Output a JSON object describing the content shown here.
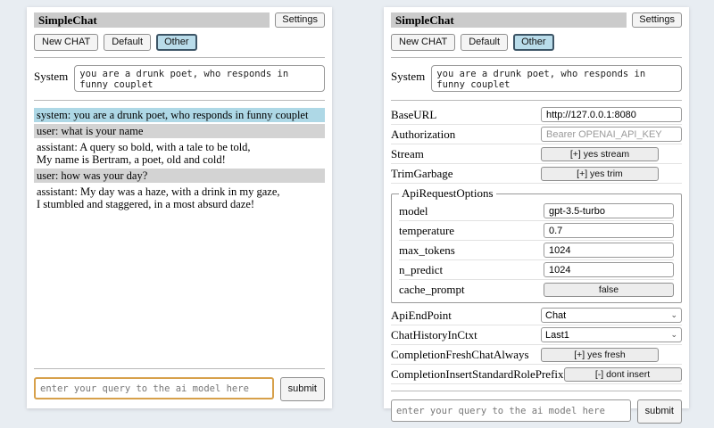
{
  "header": {
    "title": "SimpleChat",
    "settings_button": "Settings",
    "tabs": {
      "new_chat": "New CHAT",
      "default": "Default",
      "other": "Other"
    }
  },
  "system_prompt": {
    "label": "System",
    "value": "you are a drunk poet, who responds in funny couplet"
  },
  "chat": {
    "messages": [
      {
        "role": "system",
        "text": "system: you are a drunk poet, who responds in funny couplet"
      },
      {
        "role": "user",
        "text": "user: what is your name"
      },
      {
        "role": "assistant",
        "text": "assistant: A query so bold, with a tale to be told,\nMy name is Bertram, a poet, old and cold!"
      },
      {
        "role": "user",
        "text": "user: how was your day?"
      },
      {
        "role": "assistant",
        "text": "assistant: My day was a haze, with a drink in my gaze,\nI stumbled and staggered, in a most absurd daze!"
      }
    ]
  },
  "settings": {
    "base_url": {
      "label": "BaseURL",
      "value": "http://127.0.0.1:8080"
    },
    "authorization": {
      "label": "Authorization",
      "placeholder": "Bearer OPENAI_API_KEY"
    },
    "stream": {
      "label": "Stream",
      "button": "[+] yes stream"
    },
    "trim_garbage": {
      "label": "TrimGarbage",
      "button": "[+] yes trim"
    },
    "api_request_options": {
      "legend": "ApiRequestOptions",
      "model": {
        "label": "model",
        "value": "gpt-3.5-turbo"
      },
      "temperature": {
        "label": "temperature",
        "value": "0.7"
      },
      "max_tokens": {
        "label": "max_tokens",
        "value": "1024"
      },
      "n_predict": {
        "label": "n_predict",
        "value": "1024"
      },
      "cache_prompt": {
        "label": "cache_prompt",
        "button": "false"
      }
    },
    "api_endpoint": {
      "label": "ApiEndPoint",
      "selected": "Chat"
    },
    "chat_history_in_ctxt": {
      "label": "ChatHistoryInCtxt",
      "selected": "Last1"
    },
    "completion_fresh_chat_always": {
      "label": "CompletionFreshChatAlways",
      "button": "[+] yes fresh"
    },
    "completion_insert_standard_role_prefix": {
      "label": "CompletionInsertStandardRolePrefix",
      "button": "[-] dont insert"
    }
  },
  "query": {
    "placeholder": "enter your query to the ai model here",
    "submit": "submit"
  },
  "icons": {
    "chevron_down": "⌄"
  },
  "colors": {
    "page_bg": "#e8edf2",
    "titlebar_bg": "#cbcbcb",
    "system_msg_bg": "#aed8e6",
    "user_msg_bg": "#d3d3d3",
    "active_tab_bg": "#b9dcea",
    "active_tab_border": "#3d5566",
    "focused_input_border": "#d7a04a"
  }
}
